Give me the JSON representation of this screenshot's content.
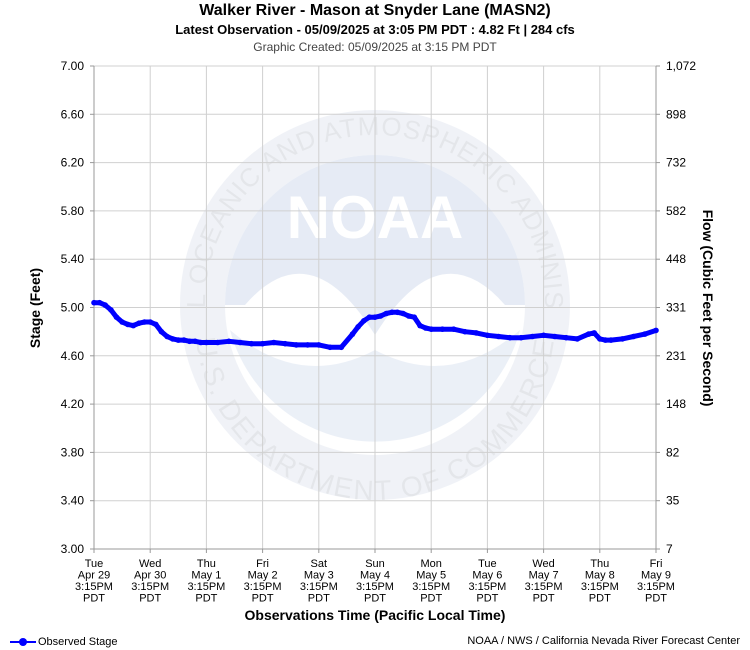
{
  "header": {
    "title": "Walker River - Mason at Snyder Lane (MASN2)",
    "subtitle": "Latest Observation - 05/09/2025 at 3:05 PM PDT : 4.82 Ft | 284 cfs",
    "created": "Graphic Created: 05/09/2025 at 3:15 PM PDT"
  },
  "footer": {
    "legend_label": "Observed Stage",
    "credit": "NOAA / NWS / California Nevada River Forecast Center"
  },
  "watermark": {
    "logo_text": "NOAA",
    "ring_top": "NATIONAL OCEANIC AND ATMOSPHERIC ADMINISTRATION",
    "ring_bottom": "U.S. DEPARTMENT OF COMMERCE"
  },
  "chart_data": {
    "type": "line",
    "xlabel": "Observations Time (Pacific Local Time)",
    "ylabel": "Stage (Feet)",
    "y2label": "Flow (Cubic Feet per Second)",
    "ylim": [
      3.0,
      7.0
    ],
    "y_ticks": [
      "3.00",
      "3.40",
      "3.80",
      "4.20",
      "4.60",
      "5.00",
      "5.40",
      "5.80",
      "6.20",
      "6.60",
      "7.00"
    ],
    "y2_ticks": [
      "7",
      "35",
      "82",
      "148",
      "231",
      "331",
      "448",
      "582",
      "732",
      "898",
      "1,072"
    ],
    "x_ticks": [
      [
        "Tue",
        "Apr 29",
        "3:15PM",
        "PDT"
      ],
      [
        "Wed",
        "Apr 30",
        "3:15PM",
        "PDT"
      ],
      [
        "Thu",
        "May 1",
        "3:15PM",
        "PDT"
      ],
      [
        "Fri",
        "May 2",
        "3:15PM",
        "PDT"
      ],
      [
        "Sat",
        "May 3",
        "3:15PM",
        "PDT"
      ],
      [
        "Sun",
        "May 4",
        "3:15PM",
        "PDT"
      ],
      [
        "Mon",
        "May 5",
        "3:15PM",
        "PDT"
      ],
      [
        "Tue",
        "May 6",
        "3:15PM",
        "PDT"
      ],
      [
        "Wed",
        "May 7",
        "3:15PM",
        "PDT"
      ],
      [
        "Thu",
        "May 8",
        "3:15PM",
        "PDT"
      ],
      [
        "Fri",
        "May 9",
        "3:15PM",
        "PDT"
      ]
    ],
    "grid": true,
    "legend": "bottom-left",
    "series": [
      {
        "name": "Observed Stage",
        "color": "#0000ff",
        "x": [
          0,
          0.1,
          0.2,
          0.3,
          0.4,
          0.5,
          0.6,
          0.7,
          0.8,
          0.9,
          1.0,
          1.1,
          1.2,
          1.3,
          1.4,
          1.5,
          1.6,
          1.7,
          1.8,
          1.9,
          2.0,
          2.2,
          2.4,
          2.6,
          2.8,
          3.0,
          3.2,
          3.4,
          3.6,
          3.8,
          4.0,
          4.2,
          4.4,
          4.6,
          4.7,
          4.8,
          4.9,
          5.0,
          5.1,
          5.2,
          5.3,
          5.4,
          5.5,
          5.6,
          5.7,
          5.8,
          5.9,
          6.0,
          6.2,
          6.4,
          6.6,
          6.8,
          7.0,
          7.2,
          7.4,
          7.6,
          7.8,
          8.0,
          8.2,
          8.4,
          8.6,
          8.8,
          8.9,
          9.0,
          9.1,
          9.2,
          9.4,
          9.6,
          9.8,
          10.0
        ],
        "y": [
          5.04,
          5.04,
          5.02,
          4.98,
          4.92,
          4.88,
          4.86,
          4.85,
          4.87,
          4.88,
          4.88,
          4.86,
          4.8,
          4.76,
          4.74,
          4.73,
          4.73,
          4.72,
          4.72,
          4.71,
          4.71,
          4.71,
          4.72,
          4.71,
          4.7,
          4.7,
          4.71,
          4.7,
          4.69,
          4.69,
          4.69,
          4.67,
          4.67,
          4.78,
          4.84,
          4.89,
          4.92,
          4.92,
          4.93,
          4.95,
          4.96,
          4.96,
          4.95,
          4.93,
          4.92,
          4.85,
          4.83,
          4.82,
          4.82,
          4.82,
          4.8,
          4.79,
          4.77,
          4.76,
          4.75,
          4.75,
          4.76,
          4.77,
          4.76,
          4.75,
          4.74,
          4.78,
          4.79,
          4.74,
          4.73,
          4.73,
          4.74,
          4.76,
          4.78,
          4.81
        ]
      }
    ]
  }
}
